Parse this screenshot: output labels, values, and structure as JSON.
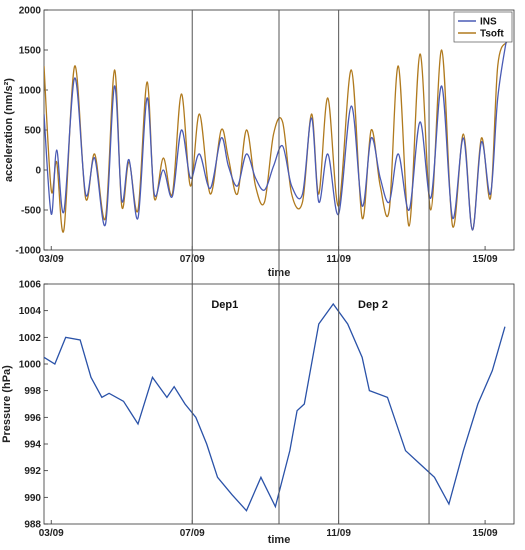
{
  "chart_data": [
    {
      "type": "line",
      "ylabel": "acceleration (nm/s²)",
      "xlabel": "time",
      "ylim": [
        -1000,
        2000
      ],
      "xlim": [
        0,
        13
      ],
      "yticks": [
        -1000,
        -500,
        0,
        500,
        1000,
        1500,
        2000
      ],
      "ytick_labels": [
        "-1000",
        "-500",
        "0",
        "500",
        "1000",
        "1500",
        "2000"
      ],
      "xticks": [
        0.2,
        4.1,
        8.15,
        12.2
      ],
      "xtick_labels": [
        "03/09",
        "07/09",
        "11/09",
        "15/09"
      ],
      "grid": false,
      "legend_position": "top-right",
      "colors": {
        "INS": "#4a5bb5",
        "Tsoft": "#b07a1e"
      },
      "series": [
        {
          "name": "INS",
          "x": [
            0,
            0.2,
            0.35,
            0.55,
            0.85,
            1.15,
            1.4,
            1.7,
            1.95,
            2.15,
            2.35,
            2.6,
            2.85,
            3.05,
            3.3,
            3.55,
            3.8,
            4.05,
            4.3,
            4.6,
            4.9,
            5.1,
            5.35,
            5.6,
            5.85,
            6.1,
            6.35,
            6.6,
            6.85,
            7.15,
            7.4,
            7.6,
            7.85,
            8.15,
            8.5,
            8.8,
            9.05,
            9.3,
            9.55,
            9.8,
            10.1,
            10.4,
            10.7,
            11.0,
            11.3,
            11.6,
            11.85,
            12.1,
            12.35,
            12.55,
            12.8
          ],
          "y": [
            700,
            -550,
            250,
            -520,
            1150,
            -300,
            150,
            -680,
            1050,
            -380,
            130,
            -600,
            900,
            -300,
            0,
            -330,
            500,
            -100,
            200,
            -230,
            400,
            50,
            -200,
            200,
            -100,
            -250,
            50,
            300,
            -200,
            -300,
            650,
            -400,
            200,
            -550,
            800,
            -450,
            400,
            -100,
            -400,
            200,
            -500,
            600,
            -350,
            1050,
            -600,
            400,
            -750,
            350,
            -300,
            900,
            1650
          ]
        },
        {
          "name": "Tsoft",
          "x": [
            0,
            0.2,
            0.35,
            0.55,
            0.85,
            1.15,
            1.4,
            1.7,
            1.95,
            2.15,
            2.35,
            2.6,
            2.85,
            3.05,
            3.3,
            3.55,
            3.8,
            4.05,
            4.3,
            4.6,
            4.9,
            5.1,
            5.35,
            5.6,
            5.85,
            6.1,
            6.35,
            6.6,
            6.85,
            7.15,
            7.4,
            7.6,
            7.85,
            8.15,
            8.5,
            8.8,
            9.05,
            9.3,
            9.55,
            9.8,
            10.1,
            10.4,
            10.7,
            11.0,
            11.3,
            11.6,
            11.85,
            12.1,
            12.35,
            12.55,
            12.8
          ],
          "y": [
            1300,
            -250,
            100,
            -750,
            1300,
            -350,
            200,
            -600,
            1250,
            -450,
            100,
            -500,
            1100,
            -350,
            150,
            -300,
            950,
            -200,
            700,
            -300,
            500,
            150,
            -300,
            500,
            -200,
            -400,
            450,
            600,
            -300,
            -400,
            700,
            -300,
            900,
            -450,
            1250,
            -600,
            500,
            -200,
            -500,
            1300,
            -700,
            1450,
            -500,
            1500,
            -700,
            450,
            -750,
            400,
            -350,
            1300,
            1600
          ]
        }
      ]
    },
    {
      "type": "line",
      "ylabel": "Pressure (hPa)",
      "xlabel": "time",
      "ylim": [
        988,
        1006
      ],
      "xlim": [
        0,
        13
      ],
      "yticks": [
        988,
        990,
        992,
        994,
        996,
        998,
        1000,
        1002,
        1004,
        1006
      ],
      "ytick_labels": [
        "988",
        "990",
        "992",
        "994",
        "996",
        "998",
        "1000",
        "1002",
        "1004",
        "1006"
      ],
      "xticks": [
        0.2,
        4.1,
        8.15,
        12.2
      ],
      "xtick_labels": [
        "03/09",
        "07/09",
        "11/09",
        "15/09"
      ],
      "grid": false,
      "colors": {
        "line": "#2a52a8"
      },
      "annotations": [
        {
          "text": "Dep1",
          "x": 5.0,
          "y": 1004.5
        },
        {
          "text": "Dep 2",
          "x": 9.1,
          "y": 1004.5
        }
      ],
      "series": [
        {
          "x": [
            0,
            0.3,
            0.6,
            1.0,
            1.3,
            1.6,
            1.8,
            2.2,
            2.6,
            3.0,
            3.4,
            3.6,
            3.9,
            4.2,
            4.5,
            4.8,
            5.2,
            5.6,
            6.0,
            6.4,
            6.8,
            7.0,
            7.2,
            7.6,
            8.0,
            8.4,
            8.8,
            9.0,
            9.5,
            10.0,
            10.4,
            10.8,
            11.2,
            11.6,
            12.0,
            12.4,
            12.75
          ],
          "y": [
            1000.5,
            1000.0,
            1002.0,
            1001.8,
            999.0,
            997.5,
            997.8,
            997.2,
            995.5,
            999.0,
            997.5,
            998.3,
            997.0,
            996.0,
            994.0,
            991.5,
            990.2,
            989.0,
            991.5,
            989.3,
            993.5,
            996.5,
            997.0,
            1003.0,
            1004.5,
            1003.0,
            1000.5,
            998.0,
            997.5,
            993.5,
            992.5,
            991.5,
            989.5,
            993.5,
            997.0,
            999.5,
            1002.8
          ]
        }
      ]
    }
  ]
}
